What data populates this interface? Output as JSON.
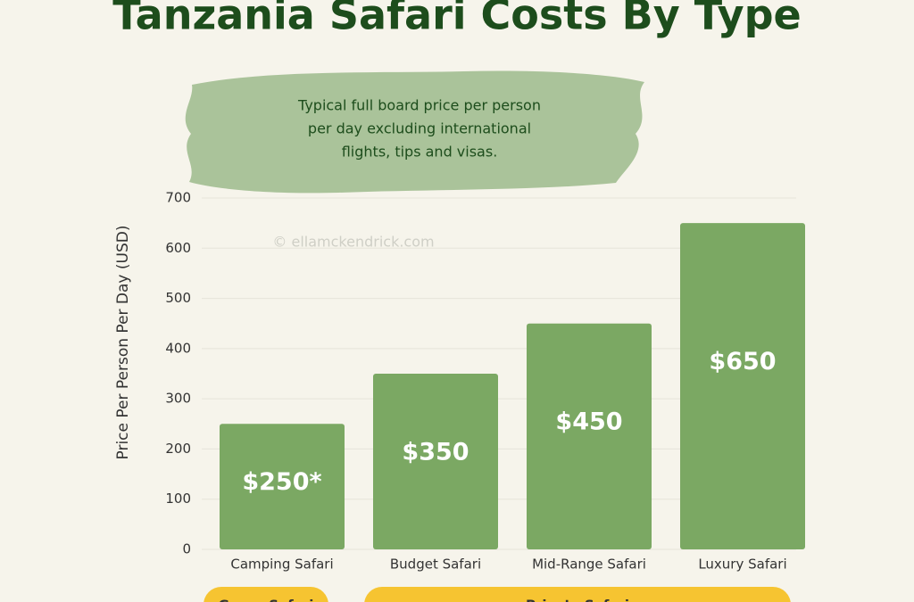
{
  "chart_data": {
    "type": "bar",
    "title": "Tanzania Safari Costs By Type",
    "note": [
      "Typical full board price per person",
      "per day excluding international",
      "flights, tips and visas."
    ],
    "watermark": "© ellamckendrick.com",
    "y_label": "Price Per Person Per Day (USD)",
    "categories": [
      "Camping Safari",
      "Budget Safari",
      "Mid-Range Safari",
      "Luxury Safari"
    ],
    "values": [
      250,
      350,
      450,
      650
    ],
    "value_labels": [
      "$250*",
      "$350",
      "$450",
      "$650"
    ],
    "color": "#7ba863",
    "ylim": [
      0,
      700
    ],
    "yticks": [
      0,
      100,
      200,
      300,
      400,
      500,
      600,
      700
    ],
    "grid": true,
    "groups": [
      "Group Safari",
      "Private Safari"
    ]
  }
}
